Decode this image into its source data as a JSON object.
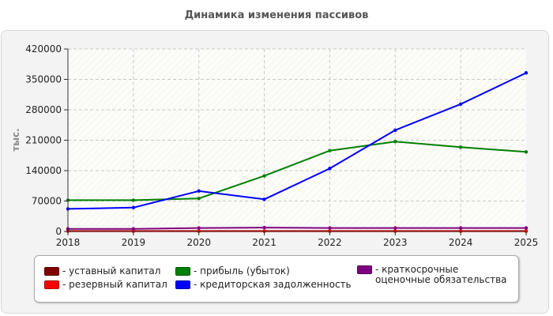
{
  "page": {
    "title": "Динамика изменения пассивов"
  },
  "chart_data": {
    "type": "line",
    "title": "Динамика изменения пассивов",
    "ylabel": "тыс.",
    "xlabel": "",
    "ylim": [
      0,
      420000
    ],
    "y_ticks": [
      "0",
      "70000",
      "140000",
      "210000",
      "280000",
      "350000",
      "420000"
    ],
    "categories": [
      "2018",
      "2019",
      "2020",
      "2021",
      "2022",
      "2023",
      "2024",
      "2025"
    ],
    "grid": true,
    "legend_position": "bottom",
    "series": [
      {
        "name": "- уставный капитал",
        "color": "#800000",
        "values": [
          1000,
          1000,
          1000,
          1000,
          1000,
          1000,
          1000,
          1000
        ]
      },
      {
        "name": "- резервный капитал",
        "color": "#ff0000",
        "values": [
          500,
          500,
          500,
          500,
          500,
          500,
          500,
          500
        ]
      },
      {
        "name": "- прибыль (убыток)",
        "color": "#008000",
        "values": [
          72000,
          72000,
          76000,
          128000,
          186000,
          207000,
          194000,
          183000
        ]
      },
      {
        "name": "- кредиторская задолженность",
        "color": "#0000ff",
        "values": [
          52000,
          55000,
          93000,
          74000,
          145000,
          233000,
          293000,
          365000
        ]
      },
      {
        "name": "- краткосрочные оценочные обязательства",
        "color": "#800080",
        "values": [
          6000,
          6000,
          8000,
          9000,
          8000,
          8000,
          8000,
          8000
        ]
      }
    ]
  }
}
